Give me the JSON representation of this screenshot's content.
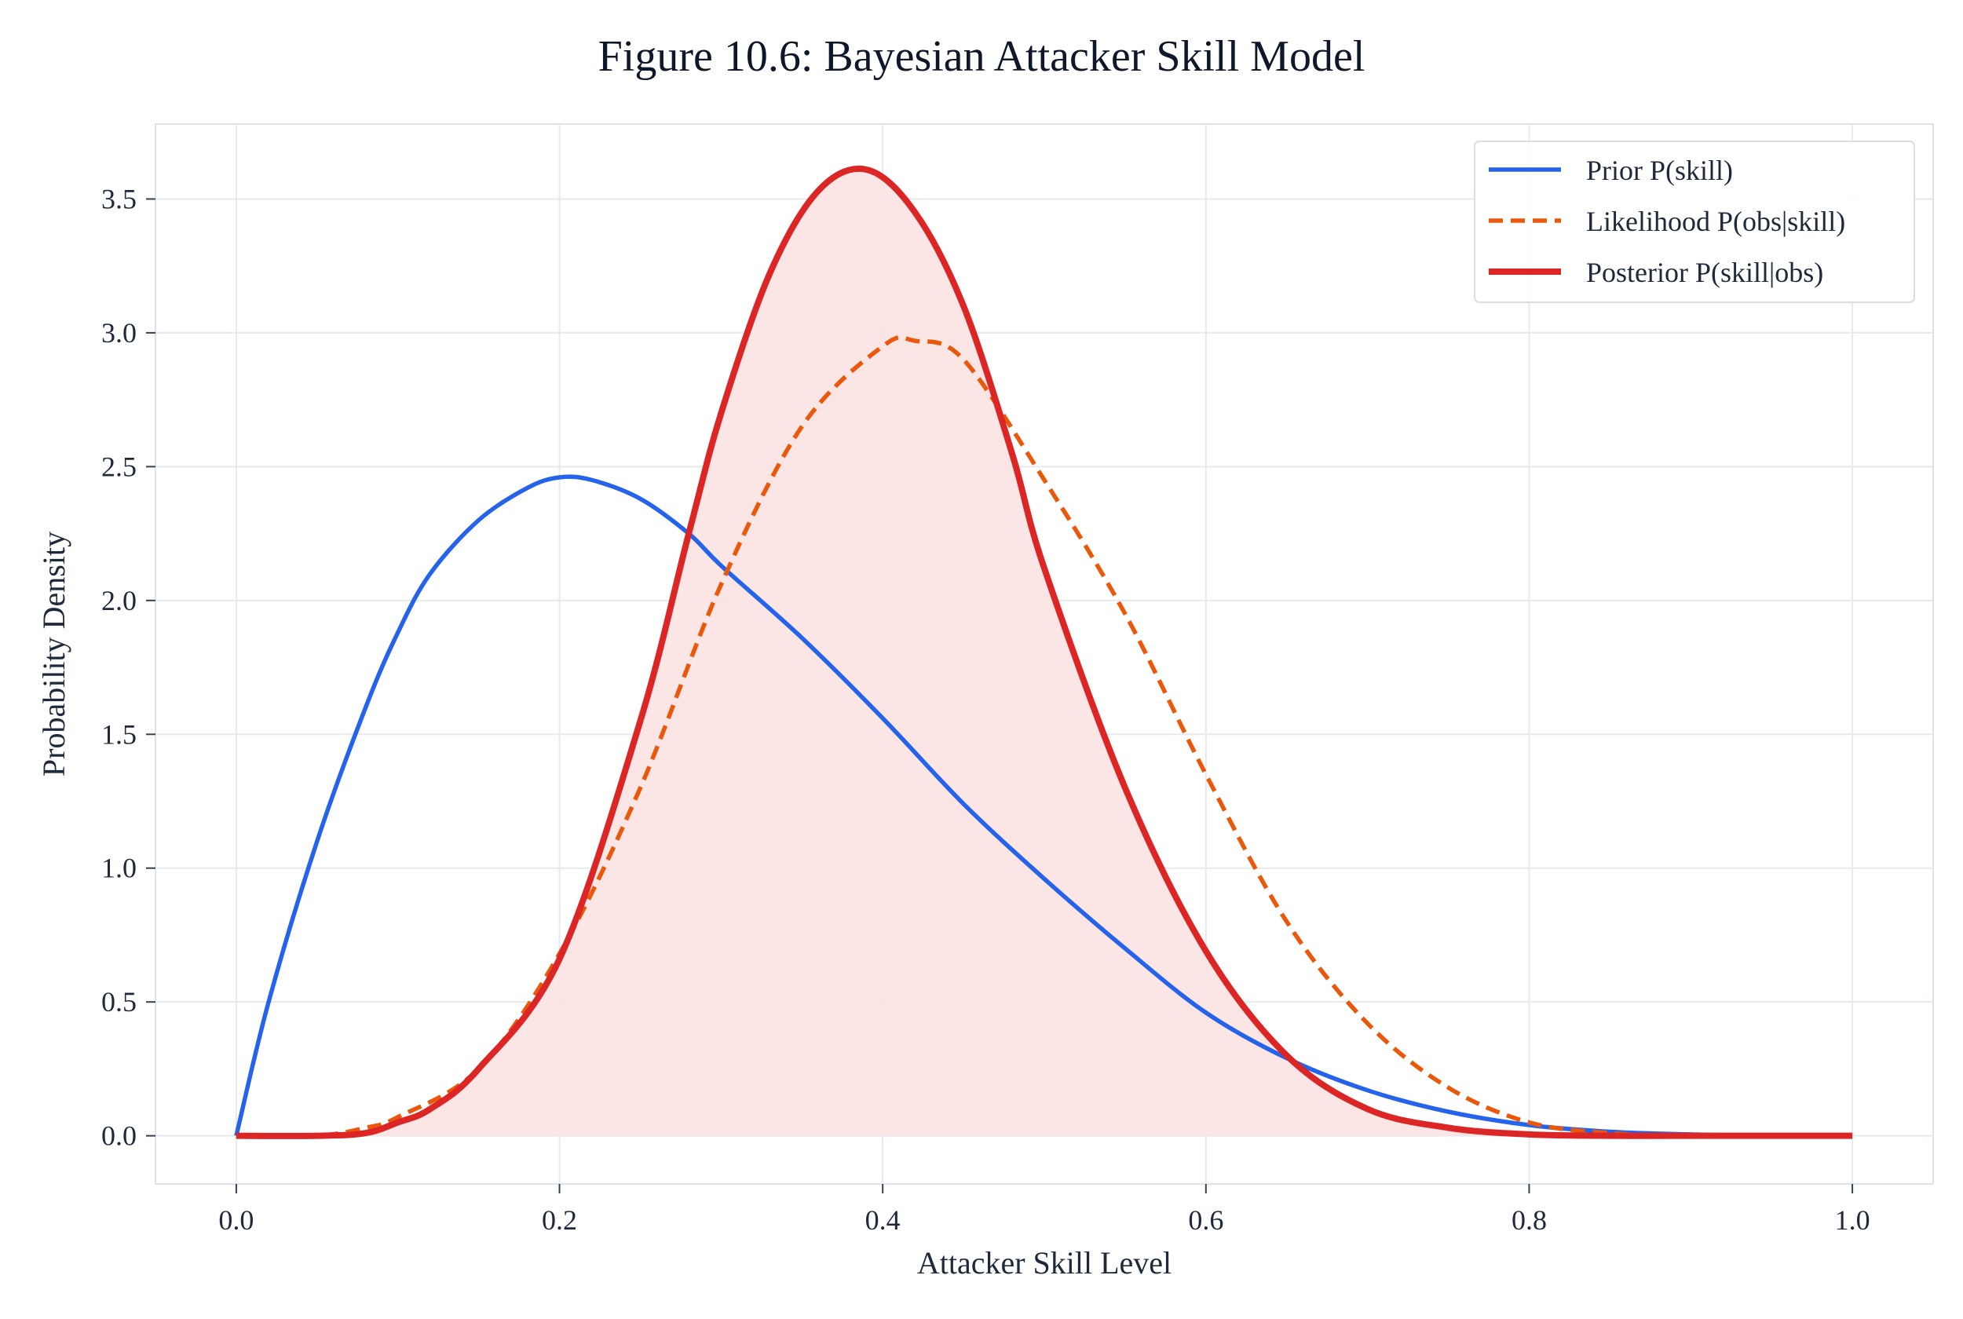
{
  "chart_data": {
    "type": "line",
    "title": "Figure 10.6: Bayesian Attacker Skill Model",
    "xlabel": "Attacker Skill Level",
    "ylabel": "Probability Density",
    "xlim": [
      -0.05,
      1.05
    ],
    "ylim": [
      -0.18,
      3.78
    ],
    "xticks": [
      "0.0",
      "0.2",
      "0.4",
      "0.6",
      "0.8",
      "1.0"
    ],
    "yticks": [
      "0.0",
      "0.5",
      "1.0",
      "1.5",
      "2.0",
      "2.5",
      "3.0",
      "3.5"
    ],
    "grid": true,
    "legend_position": "top-right",
    "series": [
      {
        "name": "Prior P(skill)",
        "color": "#2563eb",
        "style": "solid",
        "x": [
          0.0,
          0.02,
          0.05,
          0.08,
          0.1,
          0.12,
          0.15,
          0.18,
          0.2,
          0.22,
          0.25,
          0.28,
          0.3,
          0.35,
          0.4,
          0.45,
          0.5,
          0.55,
          0.6,
          0.65,
          0.7,
          0.75,
          0.8,
          0.85,
          0.9,
          0.95,
          1.0
        ],
        "y": [
          0.0,
          0.5,
          1.1,
          1.6,
          1.88,
          2.1,
          2.3,
          2.42,
          2.46,
          2.45,
          2.38,
          2.25,
          2.13,
          1.86,
          1.56,
          1.24,
          0.96,
          0.7,
          0.46,
          0.29,
          0.17,
          0.09,
          0.04,
          0.015,
          0.005,
          0.0,
          0.0
        ]
      },
      {
        "name": "Likelihood P(obs|skill)",
        "color": "#ea580c",
        "style": "dashed",
        "x": [
          0.0,
          0.05,
          0.08,
          0.1,
          0.15,
          0.2,
          0.25,
          0.3,
          0.35,
          0.4,
          0.42,
          0.45,
          0.5,
          0.55,
          0.6,
          0.65,
          0.7,
          0.75,
          0.8,
          0.85,
          0.9,
          1.0
        ],
        "y": [
          0.0,
          0.0,
          0.03,
          0.07,
          0.25,
          0.68,
          1.3,
          2.06,
          2.65,
          2.95,
          2.97,
          2.9,
          2.45,
          1.95,
          1.35,
          0.8,
          0.42,
          0.18,
          0.05,
          0.01,
          0.0,
          0.0
        ]
      },
      {
        "name": "Posterior P(skill|obs)",
        "color": "#dc2626",
        "style": "solid",
        "fill": "#fbe4e4",
        "x": [
          0.0,
          0.05,
          0.08,
          0.1,
          0.12,
          0.15,
          0.2,
          0.25,
          0.28,
          0.3,
          0.33,
          0.36,
          0.39,
          0.42,
          0.45,
          0.48,
          0.5,
          0.55,
          0.6,
          0.65,
          0.7,
          0.75,
          0.8,
          0.85,
          0.9,
          1.0
        ],
        "y": [
          0.0,
          0.0,
          0.01,
          0.05,
          0.1,
          0.25,
          0.66,
          1.55,
          2.25,
          2.7,
          3.22,
          3.53,
          3.61,
          3.45,
          3.1,
          2.55,
          2.12,
          1.3,
          0.69,
          0.3,
          0.1,
          0.03,
          0.005,
          0.0,
          0.0,
          0.0
        ]
      }
    ]
  }
}
